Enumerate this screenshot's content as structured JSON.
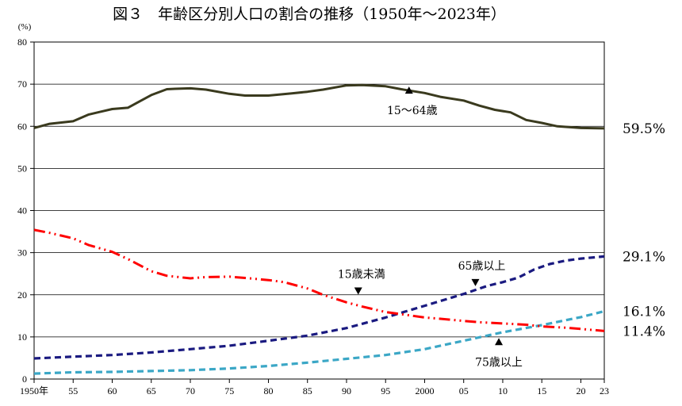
{
  "chart_data": {
    "type": "line",
    "title": "図３　年齢区分別人口の割合の推移（1950年～2023年）",
    "ylabel": "(%)",
    "xlabel": "",
    "ylim": [
      0,
      80
    ],
    "yticks": [
      0,
      10,
      20,
      30,
      40,
      50,
      60,
      70,
      80
    ],
    "xlim": [
      1950,
      2023
    ],
    "xticks": [
      {
        "year": 1950,
        "label": "1950年"
      },
      {
        "year": 1955,
        "label": "55"
      },
      {
        "year": 1960,
        "label": "60"
      },
      {
        "year": 1965,
        "label": "65"
      },
      {
        "year": 1970,
        "label": "70"
      },
      {
        "year": 1975,
        "label": "75"
      },
      {
        "year": 1980,
        "label": "80"
      },
      {
        "year": 1985,
        "label": "85"
      },
      {
        "year": 1990,
        "label": "90"
      },
      {
        "year": 1995,
        "label": "95"
      },
      {
        "year": 2000,
        "label": "2000"
      },
      {
        "year": 2005,
        "label": "05"
      },
      {
        "year": 2010,
        "label": "10"
      },
      {
        "year": 2015,
        "label": "15"
      },
      {
        "year": 2020,
        "label": "20"
      },
      {
        "year": 2023,
        "label": "23"
      }
    ],
    "series": [
      {
        "name": "15～64歳",
        "color": "#3a3a1e",
        "style": "solid",
        "end_label": "59.5%",
        "points": [
          [
            1950,
            59.6
          ],
          [
            1952,
            60.6
          ],
          [
            1955,
            61.2
          ],
          [
            1957,
            62.8
          ],
          [
            1960,
            64.1
          ],
          [
            1962,
            64.4
          ],
          [
            1965,
            67.4
          ],
          [
            1967,
            68.8
          ],
          [
            1968,
            68.9
          ],
          [
            1970,
            69.0
          ],
          [
            1972,
            68.7
          ],
          [
            1975,
            67.7
          ],
          [
            1977,
            67.3
          ],
          [
            1980,
            67.3
          ],
          [
            1983,
            67.8
          ],
          [
            1985,
            68.2
          ],
          [
            1987,
            68.7
          ],
          [
            1990,
            69.7
          ],
          [
            1992,
            69.8
          ],
          [
            1995,
            69.5
          ],
          [
            1997,
            68.8
          ],
          [
            2000,
            67.9
          ],
          [
            2002,
            67.0
          ],
          [
            2005,
            66.1
          ],
          [
            2007,
            64.9
          ],
          [
            2009,
            63.9
          ],
          [
            2011,
            63.3
          ],
          [
            2013,
            61.5
          ],
          [
            2015,
            60.8
          ],
          [
            2017,
            60.0
          ],
          [
            2020,
            59.6
          ],
          [
            2023,
            59.5
          ]
        ]
      },
      {
        "name": "15歳未満",
        "color": "#ff0000",
        "style": "dashdotdot",
        "end_label": "11.4%",
        "points": [
          [
            1950,
            35.4
          ],
          [
            1952,
            34.7
          ],
          [
            1955,
            33.4
          ],
          [
            1957,
            31.8
          ],
          [
            1960,
            30.2
          ],
          [
            1962,
            28.5
          ],
          [
            1965,
            25.6
          ],
          [
            1967,
            24.5
          ],
          [
            1970,
            23.9
          ],
          [
            1972,
            24.2
          ],
          [
            1975,
            24.3
          ],
          [
            1977,
            24.0
          ],
          [
            1980,
            23.5
          ],
          [
            1982,
            23.0
          ],
          [
            1985,
            21.5
          ],
          [
            1987,
            20.0
          ],
          [
            1990,
            18.2
          ],
          [
            1992,
            17.2
          ],
          [
            1995,
            15.9
          ],
          [
            1997,
            15.4
          ],
          [
            2000,
            14.6
          ],
          [
            2002,
            14.3
          ],
          [
            2005,
            13.8
          ],
          [
            2007,
            13.5
          ],
          [
            2010,
            13.2
          ],
          [
            2013,
            12.9
          ],
          [
            2015,
            12.5
          ],
          [
            2018,
            12.2
          ],
          [
            2020,
            11.9
          ],
          [
            2023,
            11.4
          ]
        ]
      },
      {
        "name": "65歳以上",
        "color": "#1a1a80",
        "style": "dashed",
        "end_label": "29.1%",
        "points": [
          [
            1950,
            4.9
          ],
          [
            1955,
            5.3
          ],
          [
            1960,
            5.7
          ],
          [
            1965,
            6.3
          ],
          [
            1970,
            7.1
          ],
          [
            1975,
            7.9
          ],
          [
            1980,
            9.1
          ],
          [
            1985,
            10.3
          ],
          [
            1990,
            12.1
          ],
          [
            1995,
            14.6
          ],
          [
            2000,
            17.4
          ],
          [
            2005,
            20.2
          ],
          [
            2008,
            22.1
          ],
          [
            2010,
            23.0
          ],
          [
            2012,
            24.1
          ],
          [
            2014,
            26.0
          ],
          [
            2016,
            27.3
          ],
          [
            2018,
            28.1
          ],
          [
            2020,
            28.6
          ],
          [
            2023,
            29.1
          ]
        ]
      },
      {
        "name": "75歳以上",
        "color": "#3ba7c6",
        "style": "dashed",
        "end_label": "16.1%",
        "points": [
          [
            1950,
            1.3
          ],
          [
            1955,
            1.6
          ],
          [
            1960,
            1.7
          ],
          [
            1965,
            1.9
          ],
          [
            1970,
            2.1
          ],
          [
            1975,
            2.5
          ],
          [
            1980,
            3.1
          ],
          [
            1985,
            3.9
          ],
          [
            1990,
            4.8
          ],
          [
            1995,
            5.7
          ],
          [
            2000,
            7.1
          ],
          [
            2005,
            9.1
          ],
          [
            2010,
            11.1
          ],
          [
            2015,
            12.8
          ],
          [
            2020,
            14.7
          ],
          [
            2023,
            16.1
          ]
        ]
      }
    ],
    "annotations": [
      {
        "series": "15～64歳",
        "text": "15～64歳",
        "year": 1998,
        "value": 68.5
      },
      {
        "series": "15歳未満",
        "text": "15歳未満",
        "year": 1991.5,
        "value": 21.0
      },
      {
        "series": "65歳以上",
        "text": "65歳以上",
        "year": 2006.5,
        "value": 23.0
      },
      {
        "series": "75歳以上",
        "text": "75歳以上",
        "year": 2009.5,
        "value": 8.8
      }
    ]
  }
}
